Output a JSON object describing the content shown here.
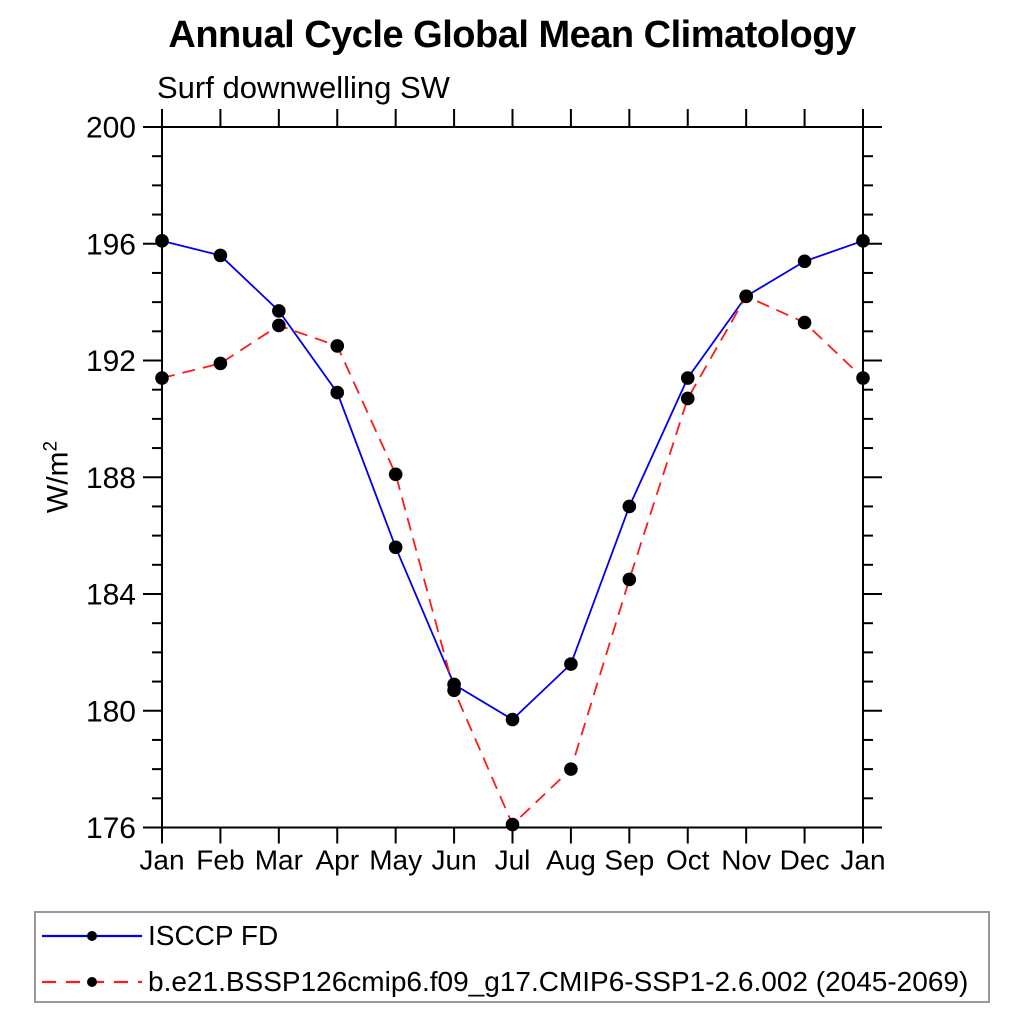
{
  "title": "Annual Cycle Global Mean Climatology",
  "subtitle": "Surf downwelling SW",
  "ylabel": {
    "text": "W/m",
    "sup": "2"
  },
  "chart_data": {
    "type": "line",
    "categories": [
      "Jan",
      "Feb",
      "Mar",
      "Apr",
      "May",
      "Jun",
      "Jul",
      "Aug",
      "Sep",
      "Oct",
      "Nov",
      "Dec",
      "Jan"
    ],
    "series": [
      {
        "name": "ISCCP FD",
        "color": "#0000ee",
        "style": "solid",
        "marker": "filled-black-circle",
        "values": [
          196.1,
          195.6,
          193.7,
          190.9,
          185.6,
          180.9,
          179.7,
          181.6,
          187.0,
          191.4,
          194.2,
          195.4,
          196.1
        ]
      },
      {
        "name": "b.e21.BSSP126cmip6.f09_g17.CMIP6-SSP1-2.6.002 (2045-2069)",
        "color": "#ff1a1a",
        "style": "dashed",
        "marker": "filled-black-circle",
        "values": [
          191.4,
          191.9,
          193.2,
          192.5,
          188.1,
          180.7,
          176.1,
          178.0,
          184.5,
          190.7,
          194.2,
          193.3,
          191.4
        ]
      }
    ],
    "ylabel": "W/m2",
    "ylim": [
      176,
      200
    ],
    "ytick_major_step": 4,
    "ytick_minor_step": 1,
    "ytick_labels": [
      "176",
      "180",
      "184",
      "188",
      "192",
      "196",
      "200"
    ],
    "grid": false,
    "legend_position": "bottom",
    "axis_color": "#000000",
    "text_color": "#000000"
  }
}
